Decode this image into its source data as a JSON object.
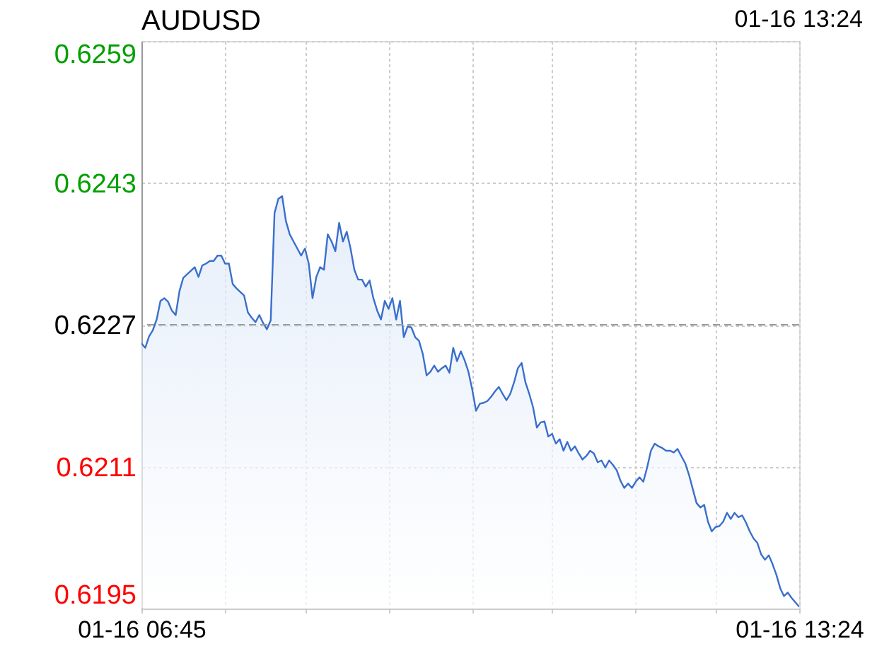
{
  "chart_data": {
    "type": "area",
    "title": "AUDUSD",
    "subtitle": "01-16 13:24",
    "categories": [
      "01-16 06:45",
      null,
      null,
      null,
      null,
      null,
      null,
      null,
      null,
      null,
      null,
      null,
      null,
      null,
      null,
      null,
      null,
      null,
      null,
      null,
      null,
      null,
      null,
      null,
      null,
      null,
      null,
      null,
      null,
      null,
      null,
      null,
      null,
      null,
      null,
      null,
      null,
      null,
      null,
      null,
      null,
      null,
      null,
      null,
      null,
      null,
      null,
      null,
      null,
      null,
      null,
      null,
      null,
      null,
      null,
      null,
      null,
      null,
      null,
      null,
      null,
      null,
      null,
      null,
      null,
      null,
      null,
      null,
      null,
      null,
      null,
      null,
      null,
      null,
      null,
      null,
      null,
      null,
      null,
      null,
      null,
      null,
      null,
      null,
      null,
      null,
      null,
      null,
      null,
      null,
      null,
      null,
      null,
      null,
      null,
      null,
      null,
      null,
      null,
      null,
      null,
      null,
      null,
      null,
      null,
      null,
      null,
      null,
      null,
      null,
      null,
      null,
      null,
      null,
      null,
      null,
      null,
      null,
      null,
      null,
      null,
      null,
      null,
      null,
      null,
      null,
      null,
      null,
      null,
      null,
      null,
      null,
      null,
      null,
      null,
      null,
      null,
      null,
      null,
      null,
      null,
      null,
      null,
      null,
      null,
      null,
      null,
      null,
      null,
      null,
      null,
      null,
      null,
      null,
      null,
      null,
      null,
      null,
      null,
      null,
      null,
      null,
      null,
      null,
      null,
      null,
      null,
      null,
      null,
      null,
      null,
      null,
      null,
      "01-16 13:24"
    ],
    "series": [
      {
        "color": "#3a6fcc",
        "values": [
          0.62249,
          0.62244,
          0.62257,
          0.62264,
          0.62276,
          0.62297,
          0.623,
          0.62296,
          0.62286,
          0.62281,
          0.62308,
          0.62323,
          0.62327,
          0.62331,
          0.62335,
          0.62324,
          0.62337,
          0.62339,
          0.62342,
          0.62342,
          0.62348,
          0.62348,
          0.62339,
          0.62339,
          0.62316,
          0.62311,
          0.62307,
          0.62303,
          0.62284,
          0.62278,
          0.62273,
          0.62281,
          0.62272,
          0.62265,
          0.62275,
          0.62396,
          0.62412,
          0.62415,
          0.62387,
          0.62372,
          0.62364,
          0.62356,
          0.62348,
          0.62356,
          0.62339,
          0.623,
          0.62324,
          0.62335,
          0.62332,
          0.62372,
          0.62364,
          0.62353,
          0.62385,
          0.62364,
          0.62375,
          0.62356,
          0.62332,
          0.62321,
          0.62321,
          0.62313,
          0.6232,
          0.623,
          0.62286,
          0.62276,
          0.62297,
          0.62288,
          0.623,
          0.62276,
          0.62297,
          0.62256,
          0.62268,
          0.62267,
          0.62256,
          0.62252,
          0.62237,
          0.62213,
          0.62217,
          0.62224,
          0.62217,
          0.62221,
          0.62224,
          0.62216,
          0.62244,
          0.62229,
          0.6224,
          0.6223,
          0.62217,
          0.62197,
          0.62173,
          0.62181,
          0.62182,
          0.62184,
          0.62189,
          0.62195,
          0.622,
          0.62192,
          0.62185,
          0.62192,
          0.62205,
          0.62221,
          0.62227,
          0.62205,
          0.62192,
          0.62177,
          0.62154,
          0.6216,
          0.62161,
          0.62144,
          0.62147,
          0.62136,
          0.62141,
          0.62128,
          0.62138,
          0.62128,
          0.62133,
          0.62125,
          0.62118,
          0.62122,
          0.62128,
          0.62125,
          0.62115,
          0.62117,
          0.62109,
          0.62117,
          0.62112,
          0.62106,
          0.62094,
          0.62086,
          0.62091,
          0.62086,
          0.62093,
          0.62098,
          0.62093,
          0.62109,
          0.62128,
          0.62136,
          0.62133,
          0.62131,
          0.62128,
          0.62128,
          0.62126,
          0.6213,
          0.62122,
          0.62114,
          0.62101,
          0.62085,
          0.62069,
          0.62064,
          0.62067,
          0.62048,
          0.62037,
          0.62042,
          0.62043,
          0.62048,
          0.62058,
          0.62051,
          0.62058,
          0.62053,
          0.62055,
          0.62047,
          0.62037,
          0.62029,
          0.62024,
          0.62011,
          0.62005,
          0.6201,
          0.62,
          0.61988,
          0.61973,
          0.61964,
          0.61968,
          0.61962,
          0.61957,
          0.61952
        ]
      }
    ],
    "ylim": [
      0.6195,
      0.6259
    ],
    "yticks": [
      0.6195,
      0.6211,
      0.6227,
      0.6243,
      0.6259
    ],
    "grid": true,
    "ref_lines": [
      {
        "axis": "y",
        "value": 0.6227,
        "color": "#999999",
        "line_style": "dashed"
      }
    ]
  }
}
